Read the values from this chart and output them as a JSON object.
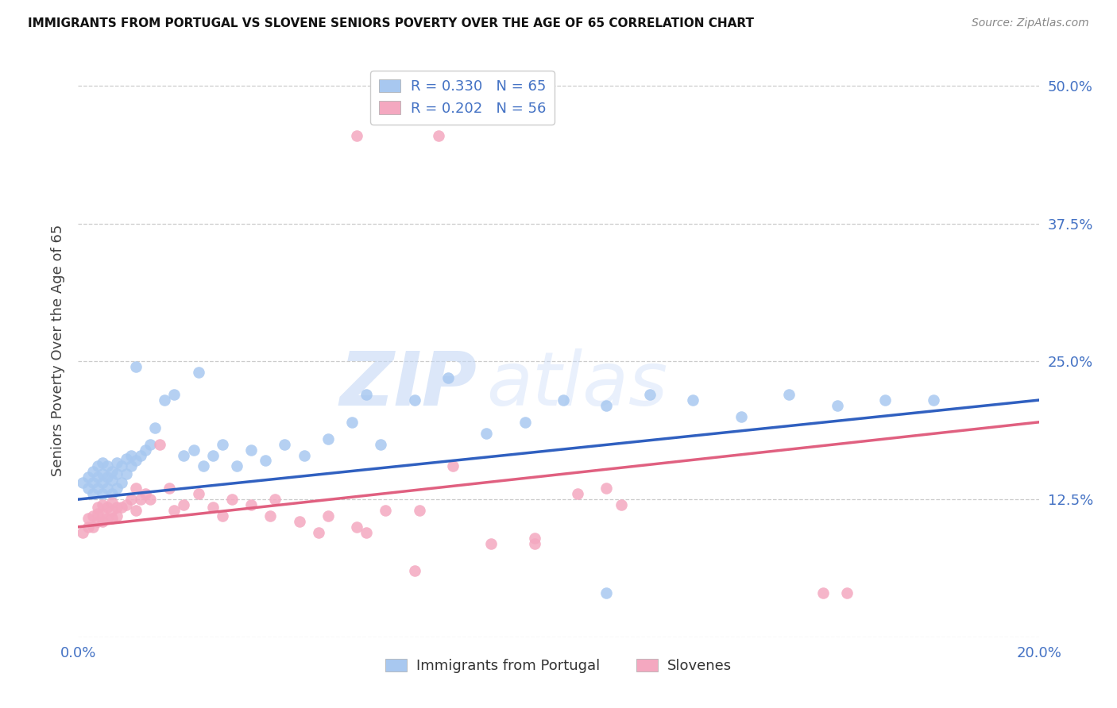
{
  "title": "IMMIGRANTS FROM PORTUGAL VS SLOVENE SENIORS POVERTY OVER THE AGE OF 65 CORRELATION CHART",
  "source": "Source: ZipAtlas.com",
  "ylabel": "Seniors Poverty Over the Age of 65",
  "xlim": [
    0.0,
    0.2
  ],
  "ylim": [
    0.0,
    0.52
  ],
  "yticks": [
    0.0,
    0.125,
    0.25,
    0.375,
    0.5
  ],
  "ytick_labels": [
    "",
    "12.5%",
    "25.0%",
    "37.5%",
    "50.0%"
  ],
  "xticks": [
    0.0,
    0.04,
    0.08,
    0.12,
    0.16,
    0.2
  ],
  "xtick_labels": [
    "0.0%",
    "",
    "",
    "",
    "",
    "20.0%"
  ],
  "blue_R": 0.33,
  "blue_N": 65,
  "pink_R": 0.202,
  "pink_N": 56,
  "blue_color": "#a8c8f0",
  "pink_color": "#f4a8c0",
  "blue_line_color": "#3060c0",
  "pink_line_color": "#e06080",
  "legend_label_blue": "Immigrants from Portugal",
  "legend_label_pink": "Slovenes",
  "blue_x": [
    0.001,
    0.002,
    0.002,
    0.003,
    0.003,
    0.003,
    0.004,
    0.004,
    0.004,
    0.005,
    0.005,
    0.005,
    0.005,
    0.006,
    0.006,
    0.006,
    0.007,
    0.007,
    0.007,
    0.008,
    0.008,
    0.008,
    0.009,
    0.009,
    0.01,
    0.01,
    0.011,
    0.011,
    0.012,
    0.013,
    0.014,
    0.015,
    0.016,
    0.018,
    0.02,
    0.022,
    0.024,
    0.026,
    0.028,
    0.03,
    0.033,
    0.036,
    0.039,
    0.043,
    0.047,
    0.052,
    0.057,
    0.063,
    0.07,
    0.077,
    0.085,
    0.093,
    0.101,
    0.11,
    0.119,
    0.128,
    0.138,
    0.148,
    0.158,
    0.168,
    0.178,
    0.012,
    0.025,
    0.06,
    0.11
  ],
  "blue_y": [
    0.14,
    0.145,
    0.135,
    0.13,
    0.14,
    0.15,
    0.135,
    0.145,
    0.155,
    0.13,
    0.14,
    0.148,
    0.158,
    0.135,
    0.145,
    0.155,
    0.13,
    0.142,
    0.15,
    0.135,
    0.148,
    0.158,
    0.14,
    0.155,
    0.148,
    0.162,
    0.155,
    0.165,
    0.16,
    0.165,
    0.17,
    0.175,
    0.19,
    0.215,
    0.22,
    0.165,
    0.17,
    0.155,
    0.165,
    0.175,
    0.155,
    0.17,
    0.16,
    0.175,
    0.165,
    0.18,
    0.195,
    0.175,
    0.215,
    0.235,
    0.185,
    0.195,
    0.215,
    0.21,
    0.22,
    0.215,
    0.2,
    0.22,
    0.21,
    0.215,
    0.215,
    0.245,
    0.24,
    0.22,
    0.04
  ],
  "pink_x": [
    0.001,
    0.002,
    0.002,
    0.003,
    0.003,
    0.004,
    0.004,
    0.004,
    0.005,
    0.005,
    0.005,
    0.006,
    0.006,
    0.007,
    0.007,
    0.007,
    0.008,
    0.008,
    0.009,
    0.01,
    0.011,
    0.012,
    0.013,
    0.014,
    0.015,
    0.017,
    0.019,
    0.022,
    0.025,
    0.028,
    0.032,
    0.036,
    0.041,
    0.046,
    0.052,
    0.058,
    0.064,
    0.071,
    0.078,
    0.086,
    0.095,
    0.104,
    0.113,
    0.058,
    0.075,
    0.095,
    0.11,
    0.012,
    0.02,
    0.03,
    0.04,
    0.05,
    0.06,
    0.07,
    0.155,
    0.16
  ],
  "pink_y": [
    0.095,
    0.1,
    0.108,
    0.1,
    0.11,
    0.105,
    0.112,
    0.118,
    0.105,
    0.112,
    0.12,
    0.108,
    0.118,
    0.108,
    0.115,
    0.122,
    0.11,
    0.118,
    0.118,
    0.12,
    0.125,
    0.115,
    0.125,
    0.13,
    0.125,
    0.175,
    0.135,
    0.12,
    0.13,
    0.118,
    0.125,
    0.12,
    0.125,
    0.105,
    0.11,
    0.1,
    0.115,
    0.115,
    0.155,
    0.085,
    0.09,
    0.13,
    0.12,
    0.455,
    0.455,
    0.085,
    0.135,
    0.135,
    0.115,
    0.11,
    0.11,
    0.095,
    0.095,
    0.06,
    0.04,
    0.04
  ]
}
